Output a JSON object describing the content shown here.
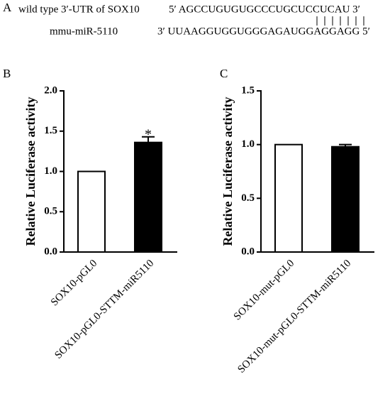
{
  "panel_a": {
    "label": "A",
    "target_name": "wild type 3′-UTR of SOX10",
    "target_seq": "5′ AGCCUGUGUGCCCUGCUCCUCAU 3′",
    "mirna_name": "mmu-miR-5110",
    "mirna_seq": "3′ UUAAGGUGGUGGGAGAUGGAGGAGG 5′"
  },
  "chart_data": [
    {
      "type": "bar",
      "panel_label": "B",
      "y_label": "Relative Luciferase activity",
      "categories": [
        "SOX10-pGL0",
        "SOX10-pGL0-STTM-miR5110"
      ],
      "values": [
        1.0,
        1.36
      ],
      "errors": [
        null,
        0.07
      ],
      "colors": [
        "#ffffff",
        "#000000"
      ],
      "annotations": [
        null,
        "*"
      ],
      "ylim": [
        0,
        2
      ],
      "yticks": [
        {
          "value": 0,
          "label": "0.0"
        },
        {
          "value": 0.5,
          "label": "0.5"
        },
        {
          "value": 1,
          "label": "1.0"
        },
        {
          "value": 1.5,
          "label": "1.5"
        },
        {
          "value": 2,
          "label": "2.0"
        }
      ]
    },
    {
      "type": "bar",
      "panel_label": "C",
      "y_label": "Relative Luciferase activity",
      "categories": [
        "SOX10-mut-pGL0",
        "SOX10-mut-pGL0-STTM-miR5110"
      ],
      "values": [
        1.0,
        0.98
      ],
      "errors": [
        null,
        0.02
      ],
      "colors": [
        "#ffffff",
        "#000000"
      ],
      "ylim": [
        0,
        1.5
      ],
      "yticks": [
        {
          "value": 0,
          "label": "0.0"
        },
        {
          "value": 0.5,
          "label": "0.5"
        },
        {
          "value": 1,
          "label": "1.0"
        },
        {
          "value": 1.5,
          "label": "1.5"
        }
      ]
    }
  ]
}
